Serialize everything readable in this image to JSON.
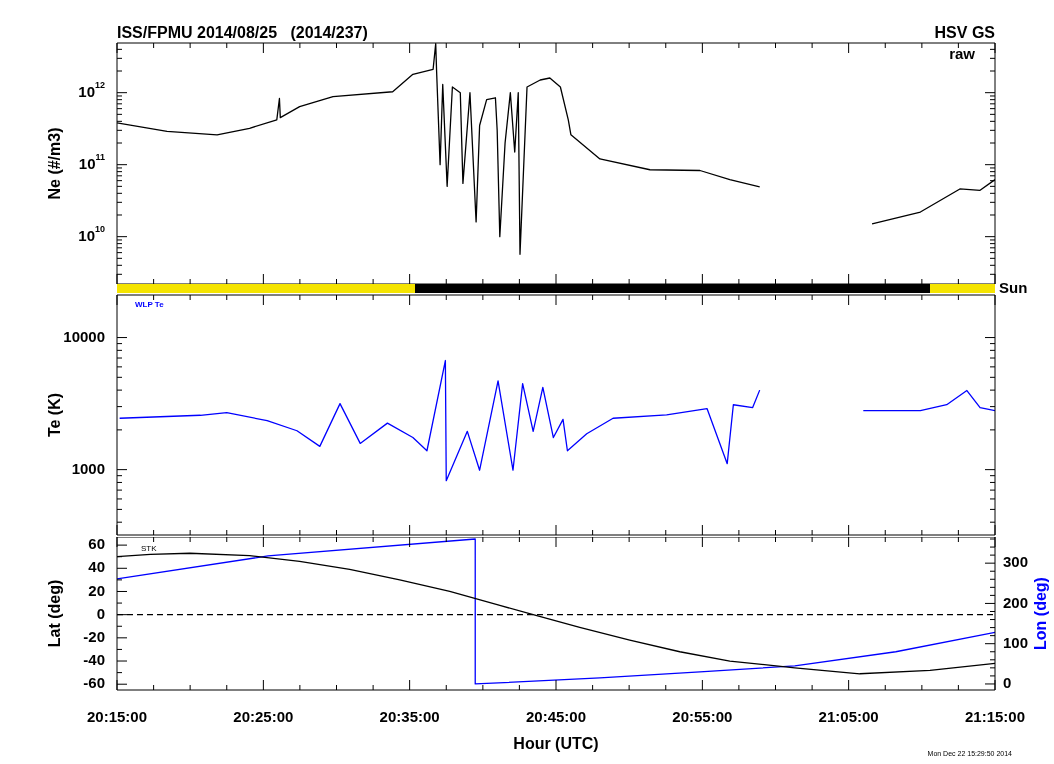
{
  "chart_data": [
    {
      "type": "line",
      "title": "ISS/FPMU 2014/08/25   (2014/237)",
      "subtitle": "HSV GS",
      "ylabel": "Ne (#/m3)",
      "annotations": [
        "raw",
        "Sun"
      ],
      "log": true,
      "tick_labels": "y",
      "xlim": [
        20.25,
        21.25
      ],
      "ylim": [
        2200000000.0,
        4900000000000.0
      ],
      "xticks": [
        20.25,
        {
          "value": 20.2917,
          "label": null
        },
        {
          "value": 20.3333,
          "label": null
        },
        {
          "value": 20.375,
          "label": null
        },
        20.4167,
        {
          "value": 20.4583,
          "label": null
        },
        {
          "value": 20.5,
          "label": null
        },
        {
          "value": 20.5417,
          "label": null
        },
        20.5833,
        {
          "value": 20.625,
          "label": null
        },
        {
          "value": 20.6667,
          "label": null
        },
        {
          "value": 20.7083,
          "label": null
        },
        20.75,
        {
          "value": 20.7917,
          "label": null
        },
        {
          "value": 20.8333,
          "label": null
        },
        {
          "value": 20.875,
          "label": null
        },
        20.9167,
        {
          "value": 20.9583,
          "label": null
        },
        {
          "value": 21.0,
          "label": null
        },
        {
          "value": 21.0417,
          "label": null
        },
        21.0833,
        {
          "value": 21.125,
          "label": null
        },
        {
          "value": 21.1667,
          "label": null
        },
        {
          "value": 21.2083,
          "label": null
        },
        21.25
      ],
      "yticks": [
        {
          "value": 3000000000.0,
          "label": null
        },
        {
          "value": 4000000000.0,
          "label": null
        },
        {
          "value": 5000000000.0,
          "label": null
        },
        {
          "value": 6000000000.0,
          "label": null
        },
        {
          "value": 7000000000.0,
          "label": null
        },
        {
          "value": 8000000000.0,
          "label": null
        },
        {
          "value": 9000000000.0,
          "label": null
        },
        {
          "value": 10000000000.0,
          "label": "10$^{10}$"
        },
        {
          "value": 20000000000.0,
          "label": null
        },
        {
          "value": 30000000000.0,
          "label": null
        },
        {
          "value": 40000000000.0,
          "label": null
        },
        {
          "value": 50000000000.0,
          "label": null
        },
        {
          "value": 60000000000.0,
          "label": null
        },
        {
          "value": 70000000000.0,
          "label": null
        },
        {
          "value": 80000000000.0,
          "label": null
        },
        {
          "value": 90000000000.0,
          "label": null
        },
        {
          "value": 100000000000.0,
          "label": "10$^{11}$"
        },
        {
          "value": 200000000000.0,
          "label": null
        },
        {
          "value": 300000000000.0,
          "label": null
        },
        {
          "value": 400000000000.0,
          "label": null
        },
        {
          "value": 500000000000.0,
          "label": null
        },
        {
          "value": 600000000000.0,
          "label": null
        },
        {
          "value": 700000000000.0,
          "label": null
        },
        {
          "value": 800000000000.0,
          "label": null
        },
        {
          "value": 900000000000.0,
          "label": null
        },
        {
          "value": 1000000000000.0,
          "label": "10$^{12}$"
        },
        {
          "value": 2000000000000.0,
          "label": null
        },
        {
          "value": 3000000000000.0,
          "label": null
        },
        {
          "value": 4000000000000.0,
          "label": null
        }
      ],
      "series": [
        {
          "color": "#000000",
          "x": [
            20.25,
            20.307,
            20.364,
            20.401,
            20.432,
            20.435,
            20.436,
            20.458,
            20.496,
            20.564,
            20.587,
            20.61,
            20.613,
            20.614,
            20.618,
            20.621,
            20.626,
            20.632,
            20.641,
            20.644,
            20.652,
            20.659,
            20.663,
            20.671,
            20.681,
            20.683,
            20.686,
            20.692,
            20.698,
            20.703,
            20.707,
            20.709,
            20.717,
            20.732,
            20.743,
            20.755,
            20.764,
            20.767,
            20.8,
            20.857,
            20.914,
            20.948,
            20.982,
            21.05,
            21.11,
            21.165,
            21.21,
            21.233,
            21.25
          ],
          "values": [
            380000000000.0,
            290000000000.0,
            260000000000.0,
            320000000000.0,
            420000000000.0,
            830000000000.0,
            450000000000.0,
            640000000000.0,
            880000000000.0,
            1030000000000.0,
            1800000000000.0,
            2100000000000.0,
            4800000000000.0,
            2000000000000.0,
            100000000000.0,
            1300000000000.0,
            50000000000.0,
            1200000000000.0,
            1000000000000.0,
            55000000000.0,
            1000000000000.0,
            16000000000.0,
            350000000000.0,
            800000000000.0,
            850000000000.0,
            300000000000.0,
            10000000000.0,
            200000000000.0,
            1000000000000.0,
            150000000000.0,
            1000000000000.0,
            5700000000.0,
            1200000000000.0,
            1500000000000.0,
            1600000000000.0,
            1200000000000.0,
            420000000000.0,
            260000000000.0,
            120000000000.0,
            85000000000.0,
            83000000000.0,
            62000000000.0,
            49000000000.0,
            null,
            15000000000.0,
            22000000000.0,
            46000000000.0,
            44000000000.0,
            62000000000.0
          ]
        }
      ]
    },
    {
      "type": "line",
      "ylabel": "Te (K)",
      "annotations": [
        "WLP Te"
      ],
      "log": true,
      "tick_labels": "y",
      "xlim": [
        20.25,
        21.25
      ],
      "ylim": [
        320,
        21000
      ],
      "xticks": [
        20.25,
        {
          "value": 20.2917,
          "label": null
        },
        {
          "value": 20.3333,
          "label": null
        },
        {
          "value": 20.375,
          "label": null
        },
        20.4167,
        {
          "value": 20.4583,
          "label": null
        },
        {
          "value": 20.5,
          "label": null
        },
        {
          "value": 20.5417,
          "label": null
        },
        20.5833,
        {
          "value": 20.625,
          "label": null
        },
        {
          "value": 20.6667,
          "label": null
        },
        {
          "value": 20.7083,
          "label": null
        },
        20.75,
        {
          "value": 20.7917,
          "label": null
        },
        {
          "value": 20.8333,
          "label": null
        },
        {
          "value": 20.875,
          "label": null
        },
        20.9167,
        {
          "value": 20.9583,
          "label": null
        },
        {
          "value": 21.0,
          "label": null
        },
        {
          "value": 21.0417,
          "label": null
        },
        21.0833,
        {
          "value": 21.125,
          "label": null
        },
        {
          "value": 21.1667,
          "label": null
        },
        {
          "value": 21.2083,
          "label": null
        },
        21.25
      ],
      "yticks": [
        {
          "value": 400,
          "label": null
        },
        {
          "value": 500,
          "label": null
        },
        {
          "value": 600,
          "label": null
        },
        {
          "value": 700,
          "label": null
        },
        {
          "value": 800,
          "label": null
        },
        {
          "value": 900,
          "label": null
        },
        1000,
        {
          "value": 2000,
          "label": null
        },
        {
          "value": 3000,
          "label": null
        },
        {
          "value": 4000,
          "label": null
        },
        {
          "value": 5000,
          "label": null
        },
        {
          "value": 6000,
          "label": null
        },
        {
          "value": 7000,
          "label": null
        },
        {
          "value": 8000,
          "label": null
        },
        {
          "value": 9000,
          "label": null
        },
        10000
      ],
      "series": [
        {
          "color": "#0000ff",
          "x": [
            20.253,
            20.345,
            20.375,
            20.421,
            20.455,
            20.481,
            20.504,
            20.527,
            20.558,
            20.587,
            20.603,
            20.624,
            20.625,
            20.649,
            20.663,
            20.684,
            20.701,
            20.712,
            20.724,
            20.735,
            20.747,
            20.758,
            20.763,
            20.785,
            20.815,
            20.876,
            20.922,
            20.945,
            20.952,
            20.974,
            20.982,
            21.05,
            21.1,
            21.165,
            21.195,
            21.218,
            21.233,
            21.25
          ],
          "values": [
            2450,
            2580,
            2700,
            2350,
            1970,
            1500,
            3160,
            1580,
            2250,
            1750,
            1390,
            6700,
            825,
            1950,
            990,
            4700,
            990,
            4480,
            1950,
            4200,
            1750,
            2400,
            1390,
            1870,
            2450,
            2600,
            2900,
            1110,
            3100,
            2950,
            4000,
            null,
            2800,
            2800,
            3100,
            3970,
            2950,
            2800
          ]
        }
      ]
    },
    {
      "type": "line",
      "xlabel": "Hour (UTC)",
      "ylabel": "Lat (deg)",
      "y2label": "Lon (deg)",
      "annotations": [
        {
          "text": "STK",
          "x": 20.275,
          "y": 50
        },
        "Mon Dec 22 15:29:50 2014"
      ],
      "xlim": [
        20.25,
        21.25
      ],
      "ylim": [
        -65,
        67
      ],
      "y2lim": [
        -15,
        365
      ],
      "xticks": [
        {
          "value": 20.25,
          "label": "20:15:00"
        },
        {
          "value": 20.2917,
          "label": null
        },
        {
          "value": 20.3333,
          "label": null
        },
        {
          "value": 20.375,
          "label": null
        },
        {
          "value": 20.4167,
          "label": "20:25:00"
        },
        {
          "value": 20.4583,
          "label": null
        },
        {
          "value": 20.5,
          "label": null
        },
        {
          "value": 20.5417,
          "label": null
        },
        {
          "value": 20.5833,
          "label": "20:35:00"
        },
        {
          "value": 20.625,
          "label": null
        },
        {
          "value": 20.6667,
          "label": null
        },
        {
          "value": 20.7083,
          "label": null
        },
        {
          "value": 20.75,
          "label": "20:45:00"
        },
        {
          "value": 20.7917,
          "label": null
        },
        {
          "value": 20.8333,
          "label": null
        },
        {
          "value": 20.875,
          "label": null
        },
        {
          "value": 20.9167,
          "label": "20:55:00"
        },
        {
          "value": 20.9583,
          "label": null
        },
        {
          "value": 21.0,
          "label": null
        },
        {
          "value": 21.0417,
          "label": null
        },
        {
          "value": 21.0833,
          "label": "21:05:00"
        },
        {
          "value": 21.125,
          "label": null
        },
        {
          "value": 21.1667,
          "label": null
        },
        {
          "value": 21.2083,
          "label": null
        },
        {
          "value": 21.25,
          "label": "21:15:00"
        }
      ],
      "yticks": [
        -60,
        {
          "value": -50,
          "label": null
        },
        -40,
        {
          "value": -30,
          "label": null
        },
        -20,
        {
          "value": -10,
          "label": null
        },
        0,
        {
          "value": 10,
          "label": null
        },
        20,
        {
          "value": 30,
          "label": null
        },
        40,
        {
          "value": 50,
          "label": null
        },
        60
      ],
      "y2ticks": [
        0,
        {
          "value": 20,
          "label": null
        },
        {
          "value": 40,
          "label": null
        },
        {
          "value": 60,
          "label": null
        },
        {
          "value": 80,
          "label": null
        },
        100,
        {
          "value": 120,
          "label": null
        },
        {
          "value": 140,
          "label": null
        },
        {
          "value": 160,
          "label": null
        },
        {
          "value": 180,
          "label": null
        },
        200,
        {
          "value": 220,
          "label": null
        },
        {
          "value": 240,
          "label": null
        },
        {
          "value": 260,
          "label": null
        },
        {
          "value": 280,
          "label": null
        },
        300,
        {
          "value": 320,
          "label": null
        },
        {
          "value": 340,
          "label": null
        },
        {
          "value": 360,
          "label": null
        }
      ],
      "ref_lines": [
        {
          "axis": "y",
          "value": 0,
          "line_style": "dashed",
          "color": "#000000"
        }
      ],
      "series": [
        {
          "color": "#000000",
          "x": [
            20.25,
            20.288,
            20.333,
            20.401,
            20.458,
            20.515,
            20.572,
            20.629,
            20.686,
            20.724,
            20.777,
            20.834,
            20.891,
            20.948,
            21.022,
            21.096,
            21.176,
            21.25
          ],
          "values": [
            50,
            52,
            53,
            51,
            46,
            39,
            30,
            20,
            8,
            0,
            -11,
            -22,
            -32,
            -40,
            -46,
            -51,
            -48,
            -42
          ]
        },
        {
          "color": "#0000ff",
          "axis": "y2",
          "x": [
            20.25,
            20.422,
            20.658,
            20.658,
            20.8,
            20.914,
            21.022,
            21.137,
            21.25
          ],
          "values": [
            261,
            318,
            360,
            0,
            15,
            30,
            45,
            80,
            128
          ]
        }
      ]
    }
  ]
}
